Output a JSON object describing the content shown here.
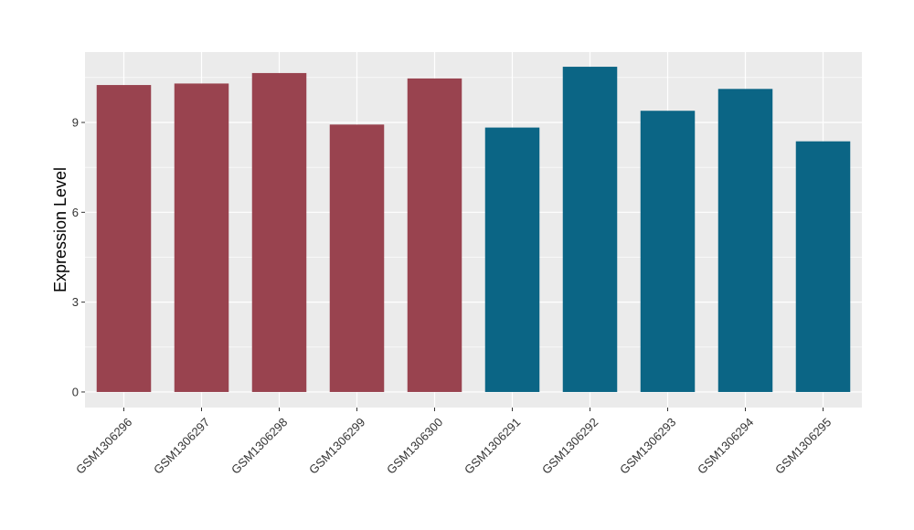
{
  "chart_data": {
    "type": "bar",
    "title": "",
    "xlabel": "",
    "ylabel": "Expression Level",
    "categories": [
      "GSM1306296",
      "GSM1306297",
      "GSM1306298",
      "GSM1306299",
      "GSM1306300",
      "GSM1306291",
      "GSM1306292",
      "GSM1306293",
      "GSM1306294",
      "GSM1306295"
    ],
    "values": [
      10.25,
      10.3,
      10.65,
      8.93,
      10.47,
      8.83,
      10.86,
      9.39,
      10.12,
      8.37
    ],
    "bar_colors": [
      "#99434f",
      "#99434f",
      "#99434f",
      "#99434f",
      "#99434f",
      "#0b6585",
      "#0b6585",
      "#0b6585",
      "#0b6585",
      "#0b6585"
    ],
    "ylim": [
      -0.52,
      11.35
    ],
    "yticks": [
      0,
      3,
      6,
      9
    ],
    "ytick_labels": [
      "0",
      "3",
      "6",
      "9"
    ],
    "grid": true,
    "legend": false,
    "panel_background": "#ebebeb",
    "grid_color": "#ffffff"
  }
}
